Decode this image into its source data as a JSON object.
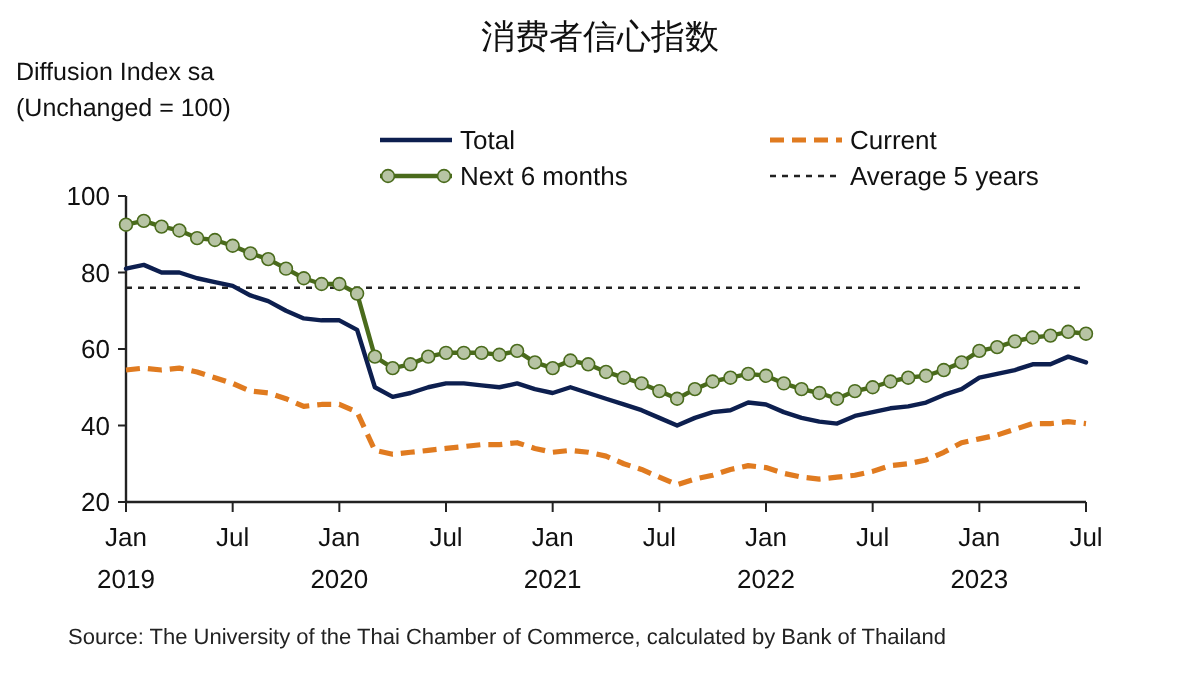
{
  "chart_data": {
    "type": "line",
    "title": "消费者信心指数",
    "ylabel": "Diffusion Index sa\n(Unchanged = 100)",
    "x": [
      "2019-01",
      "2019-02",
      "2019-03",
      "2019-04",
      "2019-05",
      "2019-06",
      "2019-07",
      "2019-08",
      "2019-09",
      "2019-10",
      "2019-11",
      "2019-12",
      "2020-01",
      "2020-02",
      "2020-03",
      "2020-04",
      "2020-05",
      "2020-06",
      "2020-07",
      "2020-08",
      "2020-09",
      "2020-10",
      "2020-11",
      "2020-12",
      "2021-01",
      "2021-02",
      "2021-03",
      "2021-04",
      "2021-05",
      "2021-06",
      "2021-07",
      "2021-08",
      "2021-09",
      "2021-10",
      "2021-11",
      "2021-12",
      "2022-01",
      "2022-02",
      "2022-03",
      "2022-04",
      "2022-05",
      "2022-06",
      "2022-07",
      "2022-08",
      "2022-09",
      "2022-10",
      "2022-11",
      "2022-12",
      "2023-01",
      "2023-02",
      "2023-03",
      "2023-04",
      "2023-05",
      "2023-06",
      "2023-07"
    ],
    "series": [
      {
        "name": "Total",
        "color": "#0d1f4f",
        "line_style": "solid",
        "values": [
          81,
          82,
          80,
          80,
          78.5,
          77.5,
          76.5,
          74,
          72.5,
          70,
          68,
          67.5,
          67.5,
          65,
          50,
          47.5,
          48.5,
          50,
          51,
          51,
          50.5,
          50,
          51,
          49.5,
          48.5,
          50,
          48.5,
          47,
          45.5,
          44,
          42,
          40,
          42,
          43.5,
          44,
          46,
          45.5,
          43.5,
          42,
          41,
          40.5,
          42.5,
          43.5,
          44.5,
          45,
          46,
          48,
          49.5,
          52.5,
          53.5,
          54.5,
          56,
          56,
          58,
          56.5
        ]
      },
      {
        "name": "Current",
        "color": "#e07b20",
        "line_style": "dashed",
        "values": [
          54.5,
          55,
          54.5,
          55,
          54,
          52.5,
          51,
          49,
          48.5,
          47,
          45,
          45.5,
          45.5,
          43.5,
          33.5,
          32.5,
          33,
          33.5,
          34,
          34.5,
          35,
          35,
          35.5,
          34,
          33,
          33.5,
          33,
          32,
          30,
          28.5,
          26.5,
          24.5,
          26,
          27,
          28.5,
          29.5,
          29,
          27.5,
          26.5,
          26,
          26.5,
          27,
          28,
          29.5,
          30,
          31,
          33,
          35.5,
          36.5,
          37.5,
          39,
          40.5,
          40.5,
          41,
          40.5
        ]
      },
      {
        "name": "Next 6 months",
        "color": "#4a6b1c",
        "line_style": "solid",
        "marker": "circle",
        "values": [
          92.5,
          93.5,
          92,
          91,
          89,
          88.5,
          87,
          85,
          83.5,
          81,
          78.5,
          77,
          77,
          74.5,
          58,
          55,
          56,
          58,
          59,
          59,
          59,
          58.5,
          59.5,
          56.5,
          55,
          57,
          56,
          54,
          52.5,
          51,
          49,
          47,
          49.5,
          51.5,
          52.5,
          53.5,
          53,
          51,
          49.5,
          48.5,
          47,
          49,
          50,
          51.5,
          52.5,
          53,
          54.5,
          56.5,
          59.5,
          60.5,
          62,
          63,
          63.5,
          64.5,
          64
        ]
      }
    ],
    "ref_lines": [
      {
        "axis": "y",
        "value": 76,
        "label": "Average 5 years",
        "color": "#222222",
        "line_style": "dashed"
      }
    ],
    "xlim": [
      "2019-01",
      "2023-07"
    ],
    "xticks": [
      {
        "value": "2019-01",
        "label": "Jan\n2019"
      },
      {
        "value": "2019-07",
        "label": "Jul"
      },
      {
        "value": "2020-01",
        "label": "Jan\n2020"
      },
      {
        "value": "2020-07",
        "label": "Jul"
      },
      {
        "value": "2021-01",
        "label": "Jan\n2021"
      },
      {
        "value": "2021-07",
        "label": "Jul"
      },
      {
        "value": "2022-01",
        "label": "Jan\n2022"
      },
      {
        "value": "2022-07",
        "label": "Jul"
      },
      {
        "value": "2023-01",
        "label": "Jan\n2023"
      },
      {
        "value": "2023-07",
        "label": "Jul"
      }
    ],
    "ylim": [
      20,
      100
    ],
    "yticks": [
      20,
      40,
      60,
      80,
      100
    ],
    "grid": false,
    "legend": "top",
    "annotations": [
      "Source:  The University of the Thai Chamber of Commerce, calculated by Bank of Thailand"
    ]
  }
}
